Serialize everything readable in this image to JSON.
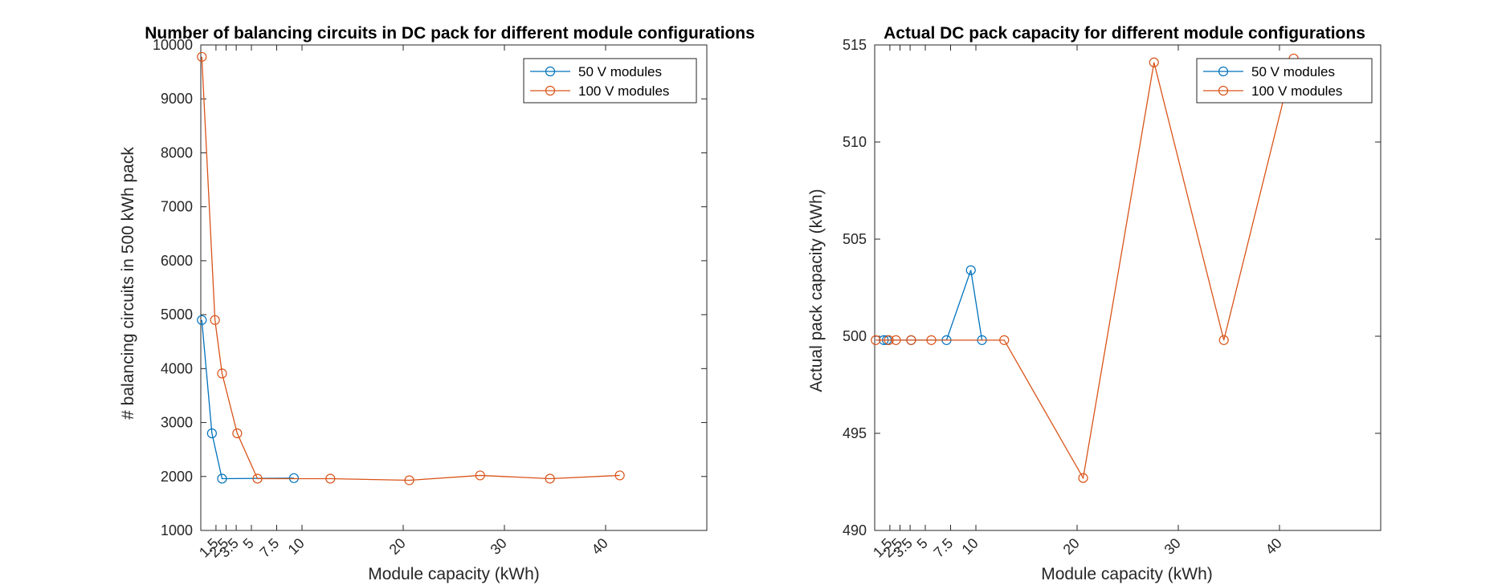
{
  "figure": {
    "colors": {
      "series_50v": "#0072BD",
      "series_100v": "#D95319",
      "axes": "#262626",
      "background": "#ffffff"
    }
  },
  "chart_data": [
    {
      "type": "line",
      "title": "Number of balancing circuits in DC pack for different module configurations",
      "xlabel": "Module capacity (kWh)",
      "ylabel": "# balancing circuits in 500 kWh pack",
      "xlim": [
        0,
        50
      ],
      "ylim": [
        1000,
        10000
      ],
      "xticks": [
        1.5,
        2.5,
        3.5,
        5,
        7.5,
        10,
        20,
        30,
        40
      ],
      "xtick_labels": [
        "1.5",
        "2.5",
        "3.5",
        "5",
        "7.5",
        "10",
        "20",
        "30",
        "40"
      ],
      "yticks": [
        1000,
        2000,
        3000,
        4000,
        5000,
        6000,
        7000,
        8000,
        9000,
        10000
      ],
      "ytick_labels": [
        "1000",
        "2000",
        "3000",
        "4000",
        "5000",
        "6000",
        "7000",
        "8000",
        "9000",
        "10000"
      ],
      "grid": false,
      "legend_position": "top-right",
      "series": [
        {
          "name": "50 V modules",
          "color": "#0072BD",
          "marker": "circle",
          "x": [
            0.1,
            1.1,
            2.1,
            9.2
          ],
          "y": [
            4900,
            2800,
            1960,
            1970
          ]
        },
        {
          "name": "100 V modules",
          "color": "#D95319",
          "marker": "circle",
          "x": [
            0.1,
            1.4,
            2.1,
            3.6,
            5.6,
            12.8,
            20.6,
            27.6,
            34.5,
            41.4
          ],
          "y": [
            9780,
            4900,
            3910,
            2800,
            1960,
            1960,
            1930,
            2020,
            1960,
            2020
          ]
        }
      ]
    },
    {
      "type": "line",
      "title": "Actual DC pack capacity for different module configurations",
      "xlabel": "Module capacity (kWh)",
      "ylabel": "Actual pack capacity (kWh)",
      "xlim": [
        0,
        50
      ],
      "ylim": [
        490,
        515
      ],
      "xticks": [
        1.5,
        2.5,
        3.5,
        5,
        7.5,
        10,
        20,
        30,
        40
      ],
      "xtick_labels": [
        "1.5",
        "2.5",
        "3.5",
        "5",
        "7.5",
        "10",
        "20",
        "30",
        "40"
      ],
      "yticks": [
        490,
        495,
        500,
        505,
        510,
        515
      ],
      "ytick_labels": [
        "490",
        "495",
        "500",
        "505",
        "510",
        "515"
      ],
      "grid": false,
      "legend_position": "top-right",
      "series": [
        {
          "name": "50 V modules",
          "color": "#0072BD",
          "marker": "circle",
          "x": [
            0.9,
            1.2,
            3.6,
            7.1,
            9.5,
            10.6
          ],
          "y": [
            499.8,
            499.8,
            499.8,
            499.8,
            503.4,
            499.8
          ]
        },
        {
          "name": "100 V modules",
          "color": "#D95319",
          "marker": "circle",
          "x": [
            0.1,
            1.4,
            2.1,
            3.6,
            5.6,
            12.8,
            20.6,
            27.6,
            34.5,
            41.4
          ],
          "y": [
            499.8,
            499.8,
            499.8,
            499.8,
            499.8,
            499.8,
            492.7,
            514.1,
            499.8,
            514.3
          ]
        }
      ]
    }
  ]
}
